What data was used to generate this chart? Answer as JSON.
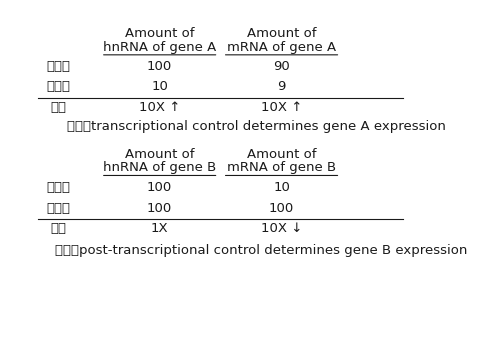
{
  "bg_color": "#f0f0f0",
  "text_color": "#1a1a1a",
  "font_size": 9.5,
  "table_A": {
    "col1_header_line1": "Amount of",
    "col1_header_line2": "hnRNA of gene A",
    "col2_header_line1": "Amount of",
    "col2_header_line2": "mRNA of gene A",
    "row1_label": "實驗組",
    "row1_col1": "100",
    "row1_col2": "90",
    "row2_label": "對照組",
    "row2_col1": "10",
    "row2_col2": "9",
    "ratio_label": "比例",
    "ratio_col1": "10X ↑",
    "ratio_col2": "10X ↑",
    "conclusion": "結論：transcriptional control determines gene A expression"
  },
  "table_B": {
    "col1_header_line1": "Amount of",
    "col1_header_line2": "hnRNA of gene B",
    "col2_header_line1": "Amount of",
    "col2_header_line2": "mRNA of gene B",
    "row1_label": "實驗組",
    "row1_col1": "100",
    "row1_col2": "10",
    "row2_label": "對照組",
    "row2_col1": "100",
    "row2_col2": "100",
    "ratio_label": "比例",
    "ratio_col1": "1X",
    "ratio_col2": "10X ↓",
    "conclusion": "結論：post-transcriptional control determines gene B expression"
  }
}
